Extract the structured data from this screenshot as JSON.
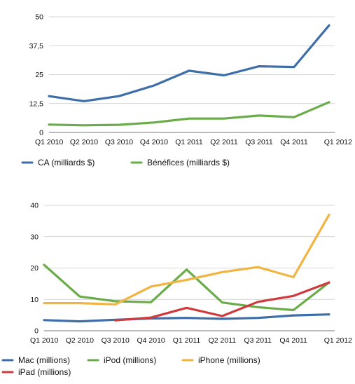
{
  "chart_data": [
    {
      "type": "line",
      "categories": [
        "Q1 2010",
        "Q2 2010",
        "Q3 2010",
        "Q4 2010",
        "Q1 2011",
        "Q2 2011",
        "Q3 2011",
        "Q4 2011",
        "Q1 2012"
      ],
      "y_ticks": [
        "0",
        "12,5",
        "25",
        "37,5",
        "50"
      ],
      "ylim": [
        0,
        50
      ],
      "grid": "horizontal",
      "legend_position": "bottom",
      "series": [
        {
          "name": "CA (milliards $)",
          "color": "#3d6ea8",
          "values": [
            15.7,
            13.5,
            15.7,
            20.3,
            26.7,
            24.7,
            28.6,
            28.3,
            46.3
          ]
        },
        {
          "name": "Bénéfices (milliards $)",
          "color": "#6aac4a",
          "values": [
            3.4,
            3.1,
            3.3,
            4.3,
            6.0,
            6.0,
            7.3,
            6.6,
            13.1
          ]
        }
      ]
    },
    {
      "type": "line",
      "categories": [
        "Q1 2010",
        "Q2 2010",
        "Q3 2010",
        "Q4 2010",
        "Q1 2011",
        "Q2 2011",
        "Q3 2011",
        "Q4 2011",
        "Q1 2012"
      ],
      "y_ticks": [
        "0",
        "10",
        "20",
        "30",
        "40"
      ],
      "ylim": [
        0,
        40
      ],
      "grid": "horizontal",
      "legend_position": "bottom",
      "series": [
        {
          "name": "Mac (millions)",
          "color": "#3d6ea8",
          "values": [
            3.4,
            3.0,
            3.5,
            3.9,
            4.1,
            3.8,
            4.1,
            4.9,
            5.2
          ]
        },
        {
          "name": "iPod (millions)",
          "color": "#6aac4a",
          "values": [
            21.0,
            10.9,
            9.4,
            9.1,
            19.5,
            9.0,
            7.5,
            6.6,
            15.4
          ]
        },
        {
          "name": "iPhone (millions)",
          "color": "#f2b441",
          "values": [
            8.8,
            8.8,
            8.4,
            14.1,
            16.2,
            18.7,
            20.3,
            17.1,
            37.0
          ]
        },
        {
          "name": "iPad (millions)",
          "color": "#cf3a3e",
          "values": [
            null,
            null,
            3.3,
            4.2,
            7.3,
            4.7,
            9.2,
            11.1,
            15.4
          ]
        }
      ]
    }
  ]
}
